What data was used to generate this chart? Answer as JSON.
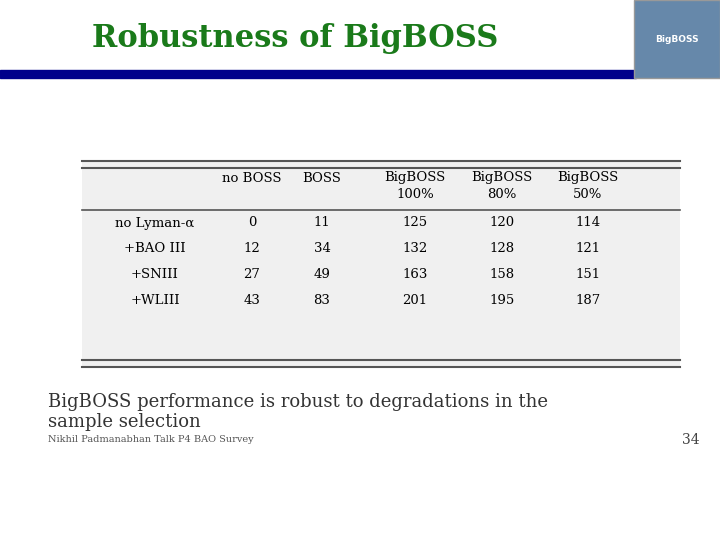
{
  "title": "Robustness of BigBOSS",
  "title_color": "#1a7a1a",
  "bg_color": "#ffffff",
  "header_bar_color": "#00008B",
  "col_headers_line1": [
    "",
    "no BOSS",
    "BOSS",
    "BigBOSS",
    "BigBOSS",
    "BigBOSS"
  ],
  "col_headers_line2": [
    "",
    "",
    "",
    "100%",
    "80%",
    "50%"
  ],
  "row_labels": [
    "no Lyman-α",
    "+BAO III",
    "+SNIII",
    "+WLIII"
  ],
  "table_data": [
    [
      0,
      11,
      125,
      120,
      114
    ],
    [
      12,
      34,
      132,
      128,
      121
    ],
    [
      27,
      49,
      163,
      158,
      151
    ],
    [
      43,
      83,
      201,
      195,
      187
    ]
  ],
  "footer_text_line1": "BigBOSS performance is robust to degradations in the",
  "footer_text_line2": "sample selection",
  "footer_sub": "Nikhil Padmanabhan Talk P4 BAO Survey",
  "page_num": "34",
  "table_bg": "#f0f0f0",
  "header_line_color": "#555555"
}
